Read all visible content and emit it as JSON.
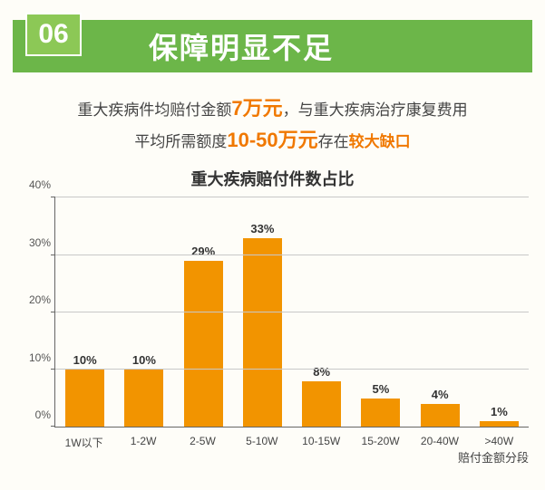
{
  "header": {
    "badge": "06",
    "title": "保障明显不足",
    "badge_bg": "#8cc856",
    "band_bg": "#6cb649",
    "title_color": "#ffffff"
  },
  "subtitle": {
    "line1_pre": "重大疾病件均赔付金额",
    "line1_accent": "7万元",
    "line1_post": "，与重大疾病治疗康复费用",
    "line2_pre": "平均所需额度",
    "line2_accent1": "10-50万元",
    "line2_mid": "存在",
    "line2_accent2": "较大缺口",
    "accent_color": "#f07800",
    "text_color": "#444444",
    "fontsize": 17
  },
  "chart": {
    "type": "bar",
    "title": "重大疾病赔付件数占比",
    "title_fontsize": 18,
    "categories": [
      "1W以下",
      "1-2W",
      "2-5W",
      "5-10W",
      "10-15W",
      "15-20W",
      "20-40W",
      ">40W"
    ],
    "values": [
      10,
      10,
      29,
      33,
      8,
      5,
      4,
      1
    ],
    "value_labels": [
      "10%",
      "10%",
      "29%",
      "33%",
      "8%",
      "5%",
      "4%",
      "1%"
    ],
    "bar_color": "#f29400",
    "ylim": [
      0,
      40
    ],
    "ytick_step": 10,
    "yticks": [
      "0%",
      "10%",
      "20%",
      "30%",
      "40%"
    ],
    "grid_color": "#c8c8c8",
    "axis_color": "#666666",
    "background_color": "#fefdf8",
    "x_axis_title": "赔付金额分段",
    "label_fontsize": 12,
    "value_label_fontsize": 13,
    "bar_width": 0.66
  }
}
